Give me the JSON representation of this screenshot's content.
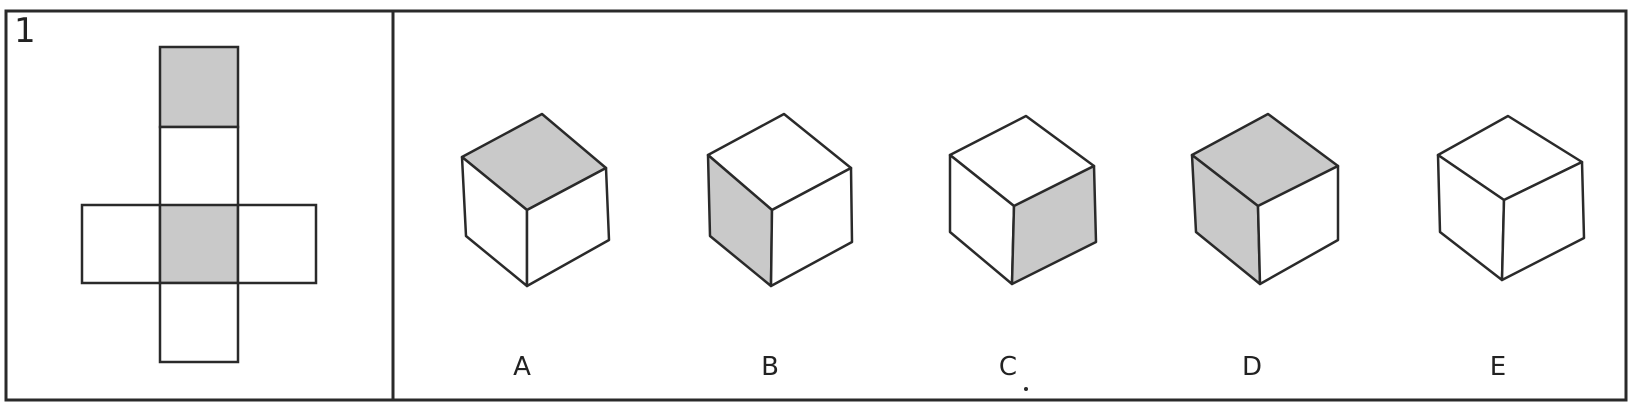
{
  "question": {
    "number": "1"
  },
  "net": {
    "shaded_faces": [
      "top",
      "center"
    ],
    "faces": [
      "top",
      "upper",
      "left",
      "center",
      "right",
      "bottom"
    ]
  },
  "options": [
    {
      "label": "A",
      "shaded_face": "top"
    },
    {
      "label": "B",
      "shaded_face": "left"
    },
    {
      "label": "C",
      "shaded_face": "right"
    },
    {
      "label": "D",
      "shaded_face": "top-and-left"
    },
    {
      "label": "E",
      "shaded_face": "none"
    }
  ],
  "colors": {
    "line": "#2a2a2a",
    "shade": "#c9c9c9",
    "background": "#ffffff"
  }
}
